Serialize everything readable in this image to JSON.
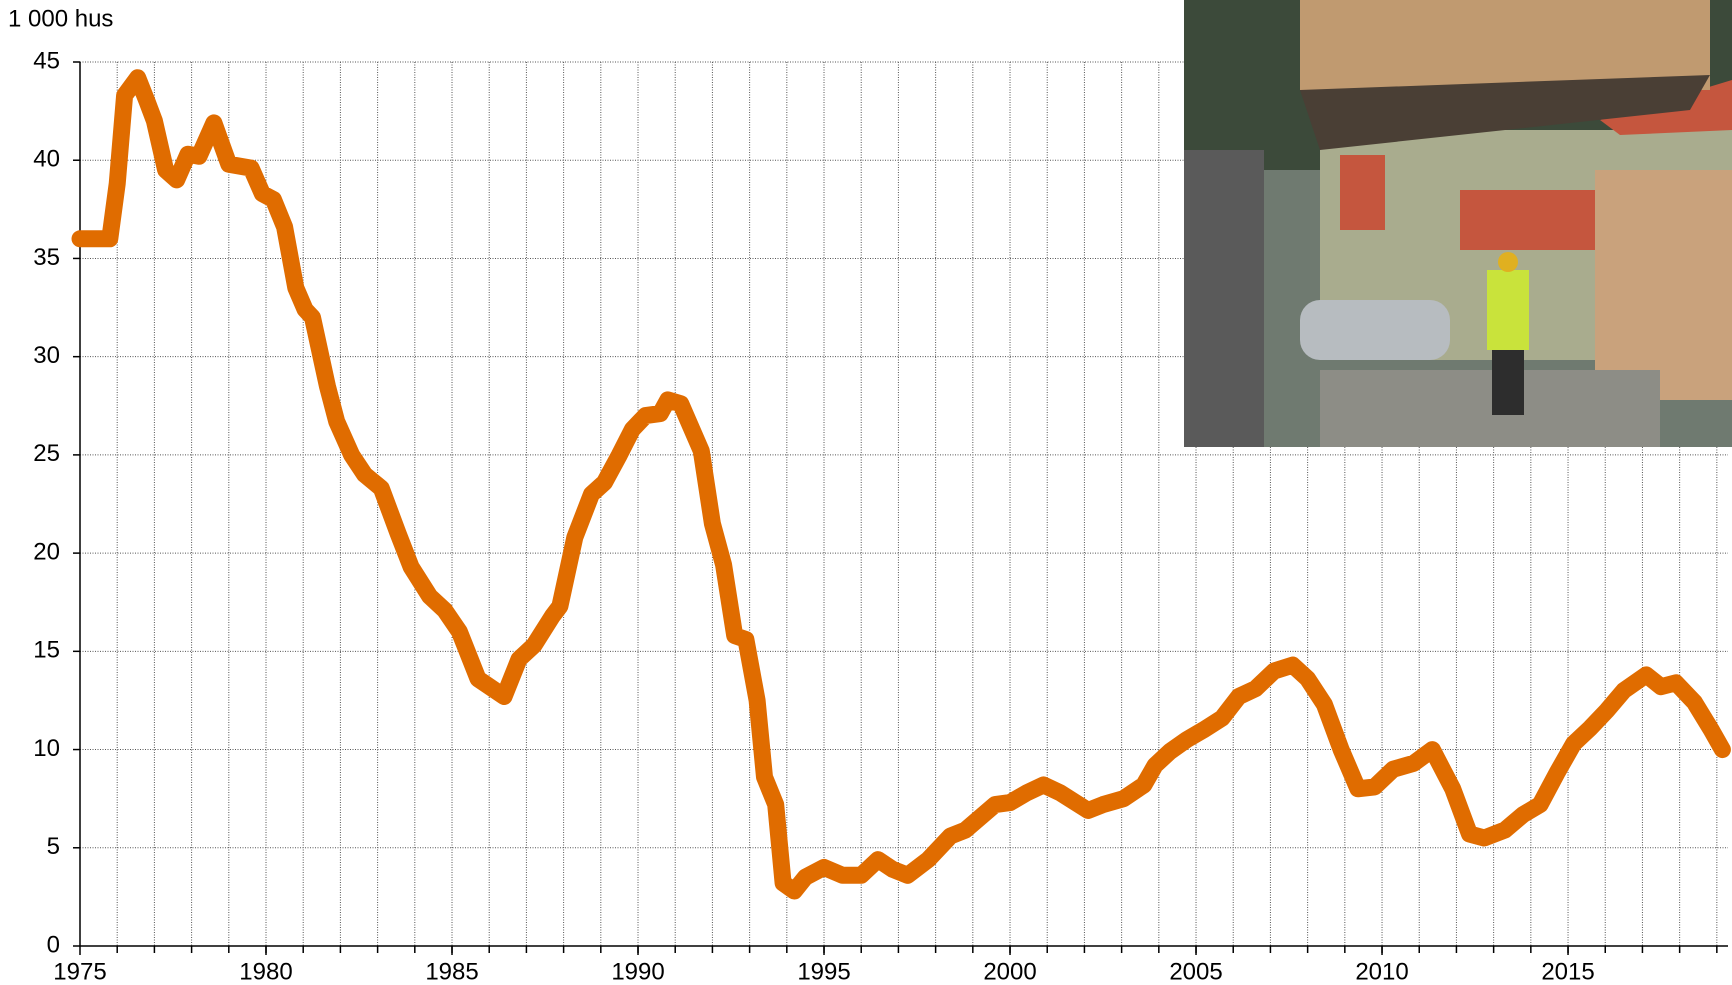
{
  "chart_data": {
    "type": "line",
    "y_unit_label": "1 000 hus",
    "x": [
      1975.0,
      1975.8,
      1976.0,
      1976.2,
      1976.55,
      1976.8,
      1977.0,
      1977.3,
      1977.6,
      1977.9,
      1978.2,
      1978.6,
      1979.0,
      1979.6,
      1979.9,
      1980.2,
      1980.5,
      1980.8,
      1981.05,
      1981.25,
      1981.65,
      1981.9,
      1982.3,
      1982.65,
      1983.1,
      1983.55,
      1983.9,
      1984.4,
      1984.8,
      1985.2,
      1985.7,
      1986.4,
      1986.8,
      1987.2,
      1987.7,
      1987.9,
      1988.3,
      1988.75,
      1989.1,
      1989.5,
      1989.85,
      1990.2,
      1990.6,
      1990.8,
      1991.15,
      1991.7,
      1992.0,
      1992.3,
      1992.6,
      1992.9,
      1993.2,
      1993.4,
      1993.7,
      1993.9,
      1994.2,
      1994.5,
      1995.0,
      1995.5,
      1996.0,
      1996.45,
      1996.85,
      1997.25,
      1997.8,
      1998.4,
      1998.8,
      1999.6,
      2000.0,
      2000.45,
      2000.9,
      2001.35,
      2002.1,
      2002.5,
      2003.05,
      2003.6,
      2003.9,
      2004.3,
      2004.75,
      2005.2,
      2005.7,
      2006.15,
      2006.6,
      2007.1,
      2007.6,
      2008.0,
      2008.45,
      2008.9,
      2009.35,
      2009.8,
      2010.3,
      2010.85,
      2011.35,
      2011.9,
      2012.35,
      2012.75,
      2013.3,
      2013.8,
      2014.25,
      2014.7,
      2015.15,
      2015.6,
      2016.05,
      2016.5,
      2017.1,
      2017.5,
      2017.9,
      2018.4,
      2018.85,
      2019.15
    ],
    "series": [
      {
        "color": "#e06c00",
        "values": [
          36,
          36,
          38.8,
          43.3,
          44.2,
          43.0,
          42.0,
          39.5,
          39.0,
          40.3,
          40.2,
          41.9,
          39.8,
          39.6,
          38.3,
          38,
          36.6,
          33.5,
          32.4,
          32,
          28.5,
          26.7,
          25,
          24,
          23.3,
          21,
          19.3,
          17.8,
          17.1,
          16,
          13.6,
          12.7,
          14.6,
          15.3,
          16.8,
          17.3,
          20.8,
          23,
          23.6,
          25,
          26.3,
          27,
          27.1,
          27.8,
          27.6,
          25.2,
          21.5,
          19.4,
          15.8,
          15.6,
          12.5,
          8.6,
          7.2,
          3.2,
          2.8,
          3.5,
          4.0,
          3.6,
          3.6,
          4.4,
          3.9,
          3.6,
          4.4,
          5.6,
          5.9,
          7.2,
          7.3,
          7.8,
          8.2,
          7.8,
          6.9,
          7.2,
          7.5,
          8.2,
          9.2,
          9.9,
          10.5,
          11.0,
          11.6,
          12.7,
          13.1,
          14.0,
          14.3,
          13.6,
          12.3,
          10,
          8.0,
          8.1,
          9.0,
          9.3,
          10.0,
          8,
          5.7,
          5.5,
          5.9,
          6.7,
          7.2,
          8.8,
          10.3,
          11.1,
          12.0,
          13.0,
          13.8,
          13.2,
          13.4,
          12.4,
          11.0,
          10.0
        ]
      }
    ],
    "xlim": [
      1975,
      2019.3
    ],
    "xticks": [
      1975,
      1980,
      1985,
      1990,
      1995,
      2000,
      2005,
      2010,
      2015
    ],
    "xgrid": [
      1976,
      1977,
      1978,
      1979,
      1980,
      1981,
      1982,
      1983,
      1984,
      1985,
      1986,
      1987,
      1988,
      1989,
      1990,
      1991,
      1992,
      1993,
      1994,
      1995,
      1996,
      1997,
      1998,
      1999,
      2000,
      2001,
      2002,
      2003,
      2004,
      2005,
      2006,
      2007,
      2008,
      2009,
      2010,
      2011,
      2012,
      2013,
      2014,
      2015,
      2016,
      2017,
      2018,
      2019
    ],
    "ylim": [
      0,
      45
    ],
    "yticks": [
      0,
      5,
      10,
      15,
      20,
      25,
      30,
      35,
      40,
      45
    ],
    "grid": true
  }
}
